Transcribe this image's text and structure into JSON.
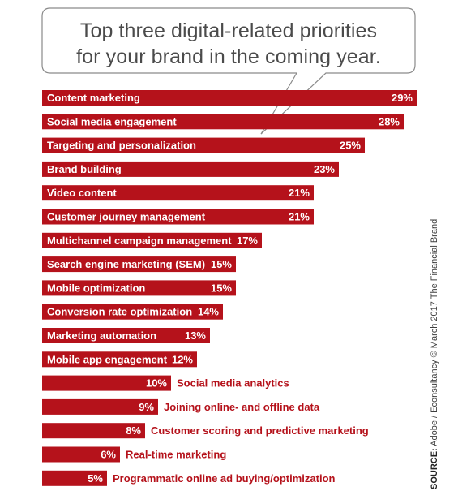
{
  "title": {
    "line1": "Top three digital-related priorities",
    "line2": "for your brand in the coming year."
  },
  "source": {
    "prefix": "SOURCE:",
    "text": "Adobe / Econsultancy © March 2017 The Financial Brand"
  },
  "colors": {
    "bar": "#b5121b",
    "inside_label": "#ffffff",
    "outside_label": "#b5121b",
    "value_on_outside": "#222222",
    "title": "#4b4b4b"
  },
  "chart_data": {
    "type": "bar",
    "orientation": "horizontal",
    "categories": [
      "Content marketing",
      "Social media engagement",
      "Targeting and personalization",
      "Brand building",
      "Video content",
      "Customer journey management",
      "Multichannel campaign management",
      "Search engine marketing (SEM)",
      "Mobile optimization",
      "Conversion rate optimization",
      "Marketing automation",
      "Mobile app engagement",
      "Social media analytics",
      "Joining online- and offline data",
      "Customer scoring and predictive marketing",
      "Real-time marketing",
      "Programmatic online ad buying/optimization"
    ],
    "values": [
      29,
      28,
      25,
      23,
      21,
      21,
      17,
      15,
      15,
      14,
      13,
      12,
      10,
      9,
      8,
      6,
      5
    ],
    "value_labels": [
      "29%",
      "28%",
      "25%",
      "23%",
      "21%",
      "21%",
      "17%",
      "15%",
      "15%",
      "14%",
      "13%",
      "12%",
      "10%",
      "9%",
      "8%",
      "6%",
      "5%"
    ],
    "unit": "%",
    "title": "Top three digital-related priorities for your brand in the coming year.",
    "xlabel": "",
    "ylabel": "",
    "xlim": [
      0,
      29
    ],
    "grid": false,
    "legend": "none"
  }
}
